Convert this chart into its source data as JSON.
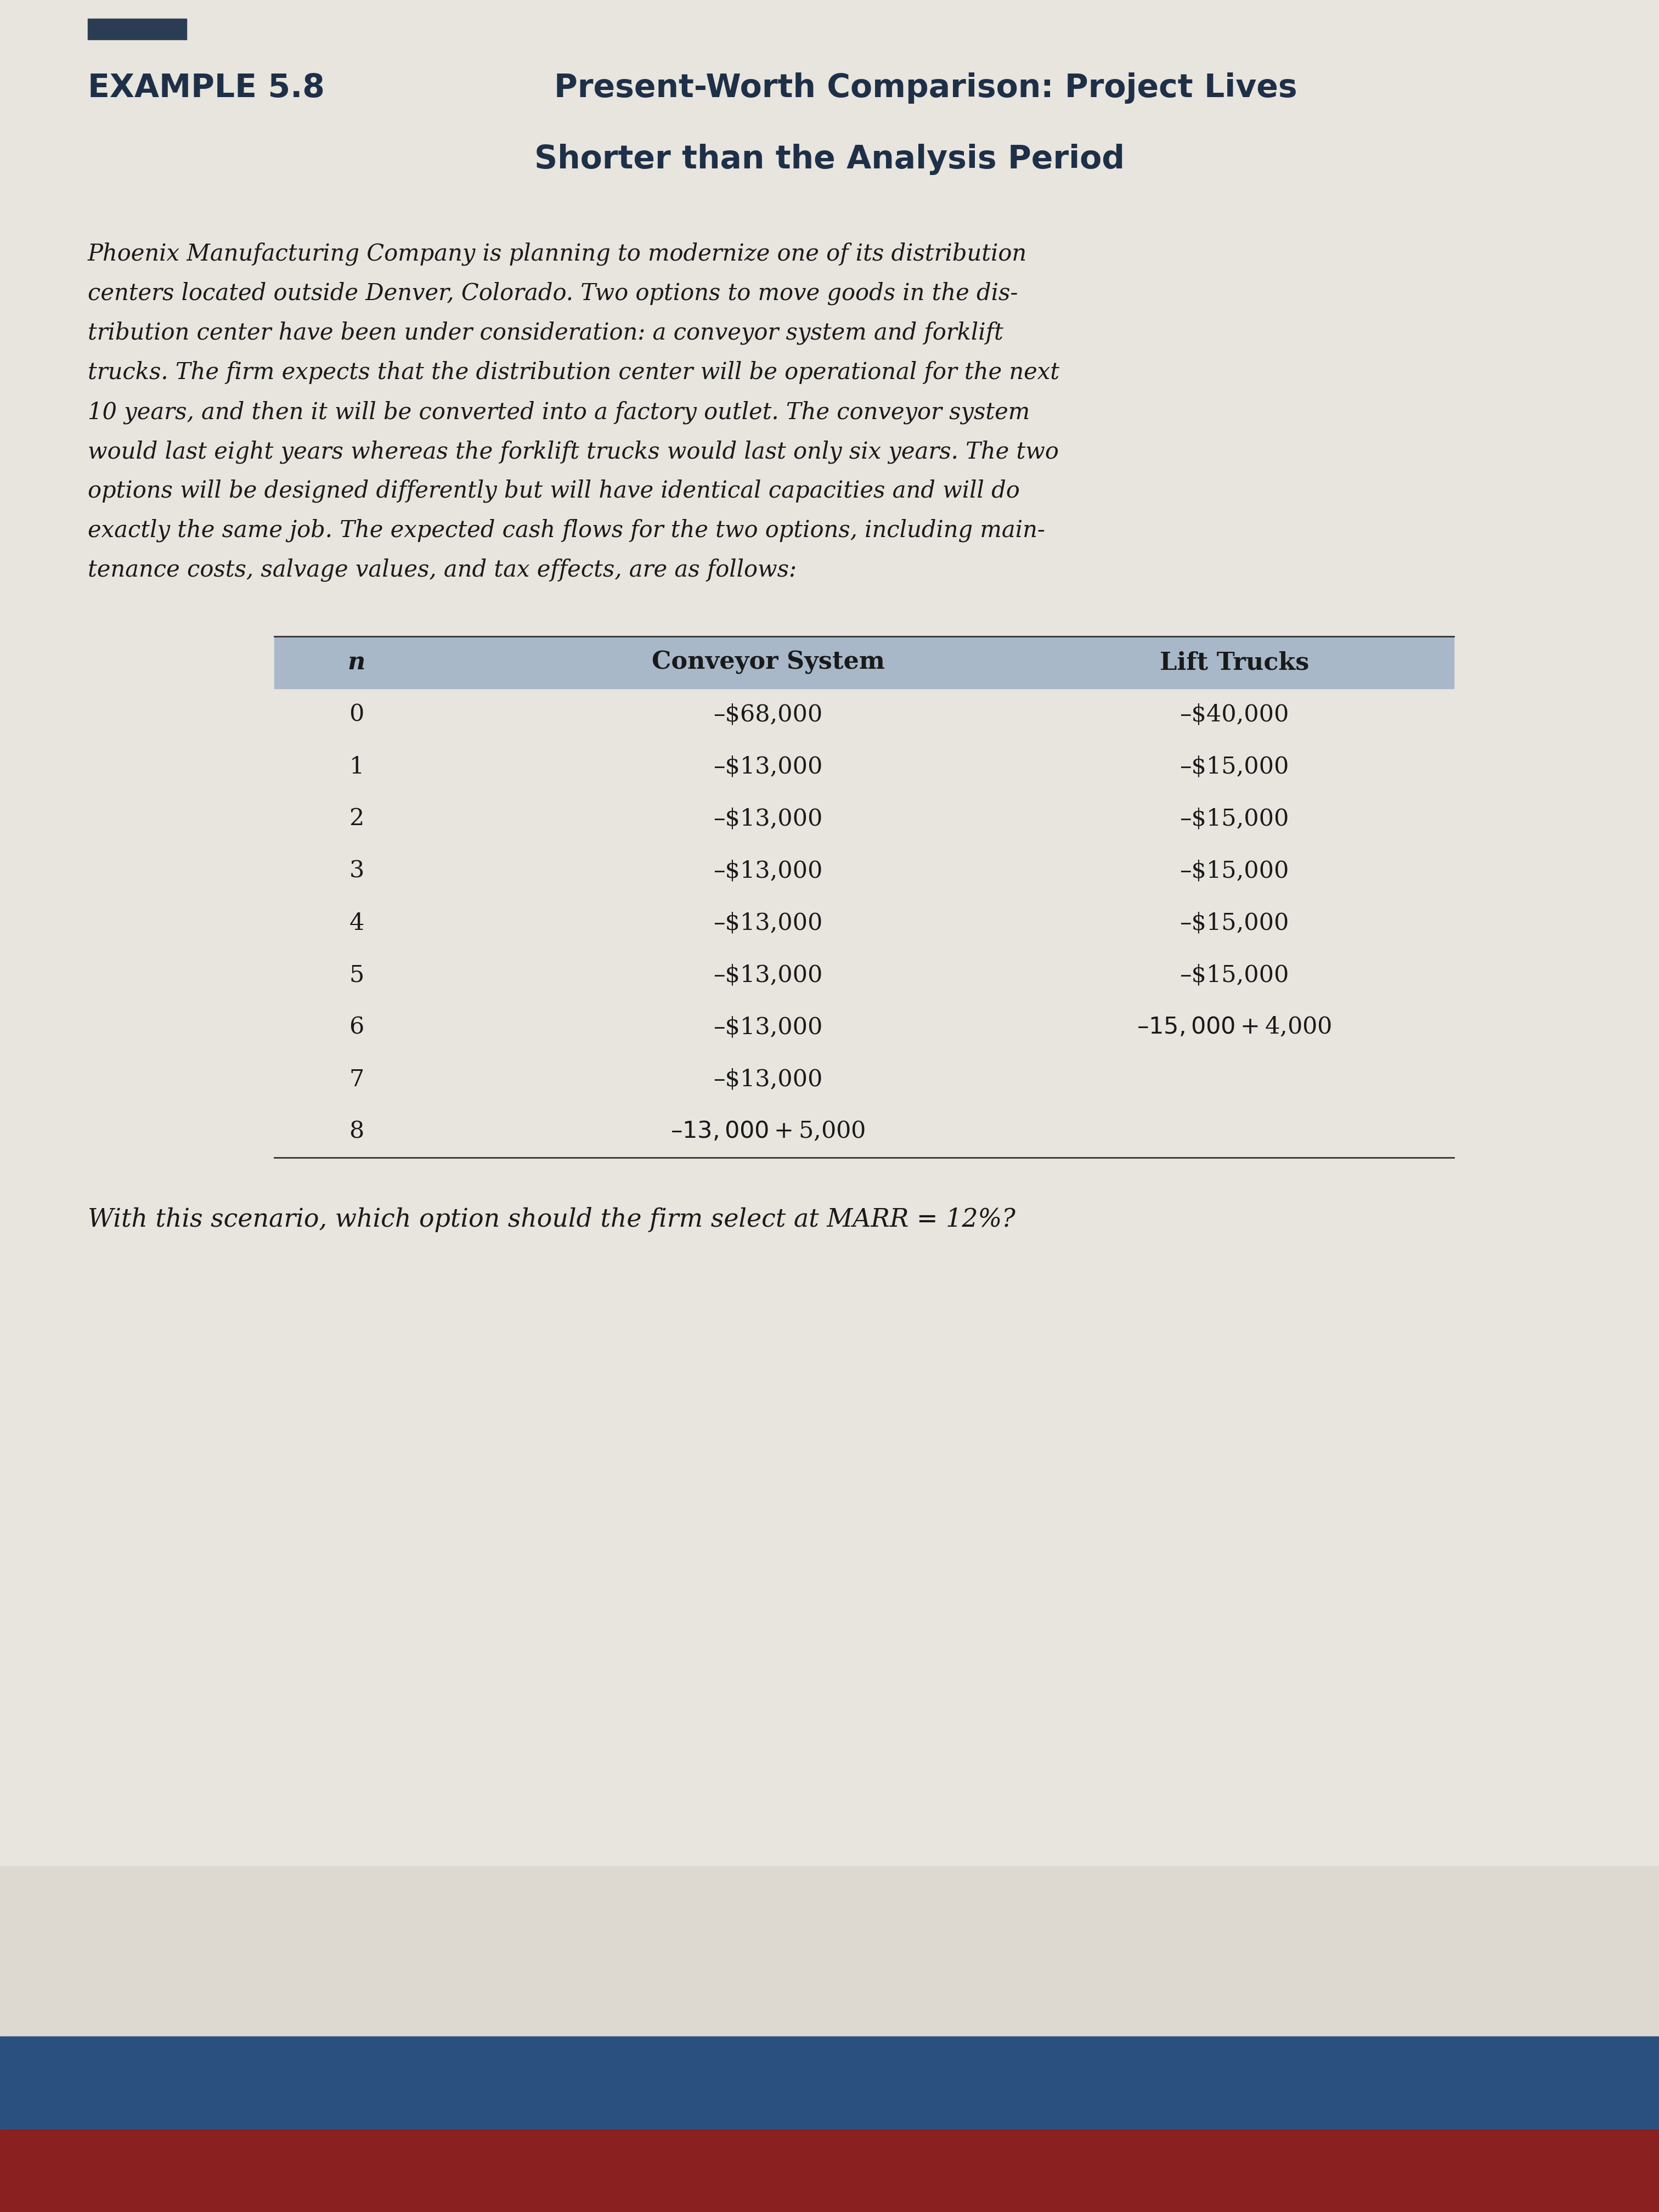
{
  "title_bold": "EXAMPLE 5.8",
  "title_regular": "Present-Worth Comparison: Project Lives",
  "title_line2": "Shorter than the Analysis Period",
  "col_header_n": "n",
  "col_header_conveyor": "Conveyor System",
  "col_header_lift": "Lift Trucks",
  "table_rows": [
    {
      "n": "0",
      "conveyor": "–$68,000",
      "lift": "–$40,000"
    },
    {
      "n": "1",
      "conveyor": "–$13,000",
      "lift": "–$15,000"
    },
    {
      "n": "2",
      "conveyor": "–$13,000",
      "lift": "–$15,000"
    },
    {
      "n": "3",
      "conveyor": "–$13,000",
      "lift": "–$15,000"
    },
    {
      "n": "4",
      "conveyor": "–$13,000",
      "lift": "–$15,000"
    },
    {
      "n": "5",
      "conveyor": "–$13,000",
      "lift": "–$15,000"
    },
    {
      "n": "6",
      "conveyor": "–$13,000",
      "lift": "–$15,000 + $4,000"
    },
    {
      "n": "7",
      "conveyor": "–$13,000",
      "lift": ""
    },
    {
      "n": "8",
      "conveyor": "–$13,000 + $5,000",
      "lift": ""
    }
  ],
  "body_lines": [
    "Phoenix Manufacturing Company is planning to modernize one of its distribution",
    "centers located outside Denver, Colorado. Two options to move goods in the dis-",
    "tribution center have been under consideration: a conveyor system and forklift",
    "trucks. The firm expects that the distribution center will be operational for the next",
    "10 years, and then it will be converted into a factory outlet. The conveyor system",
    "would last eight years whereas the forklift trucks would last only six years. The two",
    "options will be designed differently but will have identical capacities and will do",
    "exactly the same job. The expected cash flows for the two options, including main-",
    "tenance costs, salvage values, and tax effects, are as follows:"
  ],
  "question_text": "With this scenario, which option should the firm select at MARR = 12%?",
  "page_bg": "#ddd8d0",
  "content_bg": "#e8e4de",
  "table_header_bg": "#a8b8c8",
  "title_color": "#1e3048",
  "body_text_color": "#1a1a1a",
  "accent_bar_color": "#2a3d52",
  "bottom_bar_color": "#2a5080",
  "bottom_fabric_color": "#8b2020"
}
